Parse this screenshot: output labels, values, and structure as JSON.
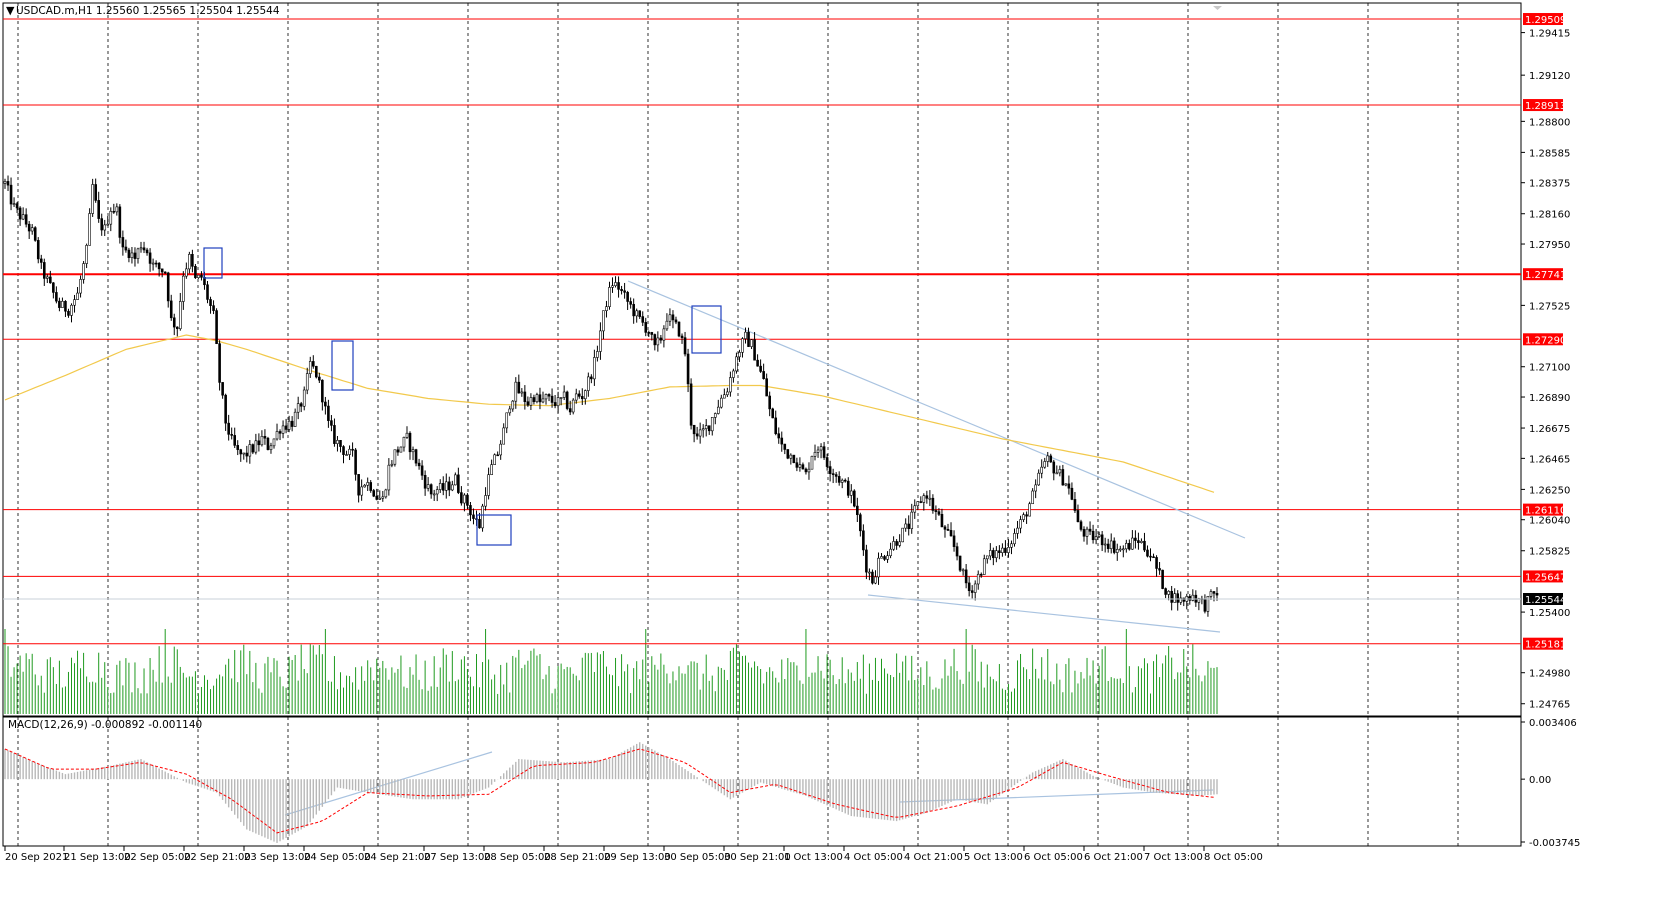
{
  "chart_header": {
    "menu_glyph": "▼",
    "symbol_line": "USDCAD.m,H1  1.25560 1.25565 1.25504 1.25544"
  },
  "macd_header": {
    "text": "MACD(12,26,9) -0.000892 -0.001140"
  },
  "colors": {
    "background": "#ffffff",
    "grid": "#000000",
    "candle": "#000000",
    "sma": "#f2c94c",
    "support_resistance": "#ff0000",
    "trendline": "#a9c3e0",
    "zone_box": "#1f3fbf",
    "volume": "#1f9a1f",
    "macd_hist": "#b8b8b8",
    "macd_signal": "#ff0000",
    "current_price_bg": "#000000"
  },
  "horizontal_levels": [
    {
      "price": 1.29509,
      "label": "1.29509"
    },
    {
      "price": 1.28913,
      "label": "1.28913"
    },
    {
      "price": 1.27741,
      "label": "1.27741"
    },
    {
      "price": 1.2729,
      "label": "1.27290"
    },
    {
      "price": 1.2611,
      "label": "1.26110"
    },
    {
      "price": 1.25647,
      "label": "1.25647"
    },
    {
      "price": 1.25181,
      "label": "1.25181"
    }
  ],
  "current_price": {
    "price": 1.25544,
    "label": "1.25544"
  },
  "price_axis_ticks": [
    "1.29415",
    "1.29120",
    "1.28800",
    "1.28585",
    "1.28375",
    "1.28160",
    "1.27950",
    "1.27525",
    "1.27100",
    "1.26890",
    "1.26675",
    "1.26465",
    "1.26250",
    "1.26040",
    "1.25825",
    "1.25400",
    "1.24980",
    "1.24765"
  ],
  "macd_axis_ticks": [
    "0.003406",
    "0.00",
    "-0.003745"
  ],
  "time_axis_ticks": [
    "20 Sep 2021",
    "21 Sep 13:00",
    "22 Sep 05:00",
    "22 Sep 21:00",
    "23 Sep 13:00",
    "24 Sep 05:00",
    "24 Sep 21:00",
    "27 Sep 13:00",
    "28 Sep 05:00",
    "28 Sep 21:00",
    "29 Sep 13:00",
    "30 Sep 05:00",
    "30 Sep 21:00",
    "1 Oct 13:00",
    "4 Oct 05:00",
    "4 Oct 21:00",
    "5 Oct 13:00",
    "6 Oct 05:00",
    "6 Oct 21:00",
    "7 Oct 13:00",
    "8 Oct 05:00"
  ],
  "price_range": {
    "max": 1.2962,
    "min": 1.2468
  },
  "macd_range": {
    "max": 0.003406,
    "min": -0.003745
  },
  "chart_data": {
    "type": "candlestick",
    "symbol": "USDCAD.m",
    "timeframe": "H1",
    "ohlc_latest": {
      "open": 1.2556,
      "high": 1.25565,
      "low": 1.25504,
      "close": 1.25544
    },
    "close_path": [
      [
        0,
        1.2837
      ],
      [
        3,
        1.282
      ],
      [
        6,
        1.2812
      ],
      [
        9,
        1.2803
      ],
      [
        12,
        1.2778
      ],
      [
        15,
        1.2765
      ],
      [
        18,
        1.2752
      ],
      [
        21,
        1.275
      ],
      [
        24,
        1.276
      ],
      [
        27,
        1.279
      ],
      [
        29,
        1.2835
      ],
      [
        31,
        1.281
      ],
      [
        33,
        1.2805
      ],
      [
        35,
        1.282
      ],
      [
        37,
        1.2818
      ],
      [
        39,
        1.279
      ],
      [
        41,
        1.279
      ],
      [
        43,
        1.2785
      ],
      [
        45,
        1.2795
      ],
      [
        47,
        1.279
      ],
      [
        49,
        1.278
      ],
      [
        51,
        1.2778
      ],
      [
        53,
        1.2776
      ],
      [
        55,
        1.2742
      ],
      [
        57,
        1.2738
      ],
      [
        59,
        1.2775
      ],
      [
        61,
        1.2785
      ],
      [
        63,
        1.277
      ],
      [
        65,
        1.2772
      ],
      [
        67,
        1.2758
      ],
      [
        69,
        1.2745
      ],
      [
        71,
        1.27
      ],
      [
        73,
        1.2672
      ],
      [
        75,
        1.2658
      ],
      [
        77,
        1.265
      ],
      [
        79,
        1.2648
      ],
      [
        81,
        1.2652
      ],
      [
        83,
        1.2655
      ],
      [
        85,
        1.266
      ],
      [
        87,
        1.2655
      ],
      [
        89,
        1.266
      ],
      [
        91,
        1.2668
      ],
      [
        93,
        1.267
      ],
      [
        95,
        1.2672
      ],
      [
        97,
        1.268
      ],
      [
        99,
        1.269
      ],
      [
        101,
        1.2712
      ],
      [
        103,
        1.2705
      ],
      [
        105,
        1.269
      ],
      [
        107,
        1.267
      ],
      [
        109,
        1.266
      ],
      [
        111,
        1.2655
      ],
      [
        113,
        1.265
      ],
      [
        115,
        1.2648
      ],
      [
        117,
        1.2625
      ],
      [
        119,
        1.263
      ],
      [
        121,
        1.2628
      ],
      [
        123,
        1.262
      ],
      [
        125,
        1.2618
      ],
      [
        127,
        1.264
      ],
      [
        129,
        1.265
      ],
      [
        131,
        1.2655
      ],
      [
        133,
        1.266
      ],
      [
        135,
        1.265
      ],
      [
        137,
        1.264
      ],
      [
        139,
        1.263
      ],
      [
        141,
        1.2622
      ],
      [
        143,
        1.2625
      ],
      [
        145,
        1.2625
      ],
      [
        147,
        1.2628
      ],
      [
        149,
        1.2632
      ],
      [
        151,
        1.262
      ],
      [
        153,
        1.2615
      ],
      [
        155,
        1.2605
      ],
      [
        157,
        1.26
      ],
      [
        159,
        1.2625
      ],
      [
        161,
        1.264
      ],
      [
        163,
        1.265
      ],
      [
        165,
        1.2665
      ],
      [
        167,
        1.2685
      ],
      [
        169,
        1.2695
      ],
      [
        171,
        1.269
      ],
      [
        173,
        1.2685
      ],
      [
        175,
        1.269
      ],
      [
        177,
        1.2685
      ],
      [
        179,
        1.2688
      ],
      [
        181,
        1.2686
      ],
      [
        183,
        1.2685
      ],
      [
        185,
        1.2688
      ],
      [
        187,
        1.268
      ],
      [
        189,
        1.269
      ],
      [
        191,
        1.269
      ],
      [
        193,
        1.27
      ],
      [
        195,
        1.2712
      ],
      [
        197,
        1.2735
      ],
      [
        199,
        1.2755
      ],
      [
        201,
        1.2768
      ],
      [
        203,
        1.2765
      ],
      [
        205,
        1.2758
      ],
      [
        207,
        1.2752
      ],
      [
        209,
        1.2745
      ],
      [
        211,
        1.274
      ],
      [
        213,
        1.2735
      ],
      [
        215,
        1.2722
      ],
      [
        217,
        1.273
      ],
      [
        219,
        1.2745
      ],
      [
        221,
        1.274
      ],
      [
        223,
        1.2735
      ],
      [
        225,
        1.272
      ],
      [
        227,
        1.2672
      ],
      [
        229,
        1.266
      ],
      [
        231,
        1.2665
      ],
      [
        233,
        1.267
      ],
      [
        235,
        1.268
      ],
      [
        237,
        1.2688
      ],
      [
        239,
        1.2695
      ],
      [
        241,
        1.271
      ],
      [
        243,
        1.2722
      ],
      [
        245,
        1.273
      ],
      [
        247,
        1.2725
      ],
      [
        249,
        1.2712
      ],
      [
        251,
        1.27
      ],
      [
        253,
        1.268
      ],
      [
        255,
        1.2665
      ],
      [
        257,
        1.2655
      ],
      [
        259,
        1.265
      ],
      [
        261,
        1.2648
      ],
      [
        263,
        1.264
      ],
      [
        265,
        1.2635
      ],
      [
        267,
        1.265
      ],
      [
        269,
        1.2655
      ],
      [
        271,
        1.2648
      ],
      [
        273,
        1.264
      ],
      [
        275,
        1.2635
      ],
      [
        277,
        1.263
      ],
      [
        279,
        1.2625
      ],
      [
        281,
        1.2615
      ],
      [
        283,
        1.2595
      ],
      [
        285,
        1.2572
      ],
      [
        287,
        1.2562
      ],
      [
        289,
        1.2575
      ],
      [
        291,
        1.258
      ],
      [
        293,
        1.2585
      ],
      [
        295,
        1.259
      ],
      [
        297,
        1.2595
      ],
      [
        299,
        1.26
      ],
      [
        301,
        1.261
      ],
      [
        303,
        1.2618
      ],
      [
        305,
        1.2622
      ],
      [
        307,
        1.2612
      ],
      [
        309,
        1.2605
      ],
      [
        311,
        1.2595
      ],
      [
        313,
        1.259
      ],
      [
        315,
        1.258
      ],
      [
        317,
        1.2565
      ],
      [
        319,
        1.2555
      ],
      [
        321,
        1.256
      ],
      [
        323,
        1.257
      ],
      [
        325,
        1.2578
      ],
      [
        327,
        1.258
      ],
      [
        329,
        1.2582
      ],
      [
        331,
        1.2585
      ],
      [
        333,
        1.259
      ],
      [
        335,
        1.2598
      ],
      [
        337,
        1.2605
      ],
      [
        339,
        1.2615
      ],
      [
        341,
        1.2625
      ],
      [
        343,
        1.264
      ],
      [
        345,
        1.2645
      ],
      [
        347,
        1.264
      ],
      [
        349,
        1.2635
      ],
      [
        351,
        1.263
      ],
      [
        353,
        1.262
      ],
      [
        355,
        1.26
      ],
      [
        357,
        1.2595
      ],
      [
        359,
        1.2592
      ],
      [
        361,
        1.2592
      ],
      [
        363,
        1.259
      ],
      [
        365,
        1.2588
      ],
      [
        367,
        1.2585
      ],
      [
        369,
        1.2583
      ],
      [
        371,
        1.2585
      ],
      [
        373,
        1.2588
      ],
      [
        375,
        1.259
      ],
      [
        377,
        1.2585
      ],
      [
        379,
        1.258
      ],
      [
        381,
        1.257
      ],
      [
        383,
        1.256
      ],
      [
        385,
        1.2552
      ],
      [
        387,
        1.255
      ],
      [
        389,
        1.2548
      ],
      [
        391,
        1.255
      ],
      [
        393,
        1.2552
      ],
      [
        395,
        1.2548
      ],
      [
        397,
        1.2545
      ],
      [
        399,
        1.255
      ],
      [
        401,
        1.2554
      ]
    ],
    "sma_path": [
      [
        0,
        1.2687
      ],
      [
        20,
        1.2704
      ],
      [
        40,
        1.2722
      ],
      [
        60,
        1.2732
      ],
      [
        70,
        1.2728
      ],
      [
        80,
        1.2722
      ],
      [
        100,
        1.2708
      ],
      [
        120,
        1.2695
      ],
      [
        140,
        1.2688
      ],
      [
        160,
        1.2684
      ],
      [
        180,
        1.2683
      ],
      [
        200,
        1.2688
      ],
      [
        220,
        1.2696
      ],
      [
        240,
        1.2697
      ],
      [
        250,
        1.2697
      ],
      [
        270,
        1.269
      ],
      [
        290,
        1.268
      ],
      [
        310,
        1.267
      ],
      [
        330,
        1.266
      ],
      [
        350,
        1.2652
      ],
      [
        370,
        1.2644
      ],
      [
        390,
        1.263
      ],
      [
        400,
        1.2623
      ]
    ]
  }
}
